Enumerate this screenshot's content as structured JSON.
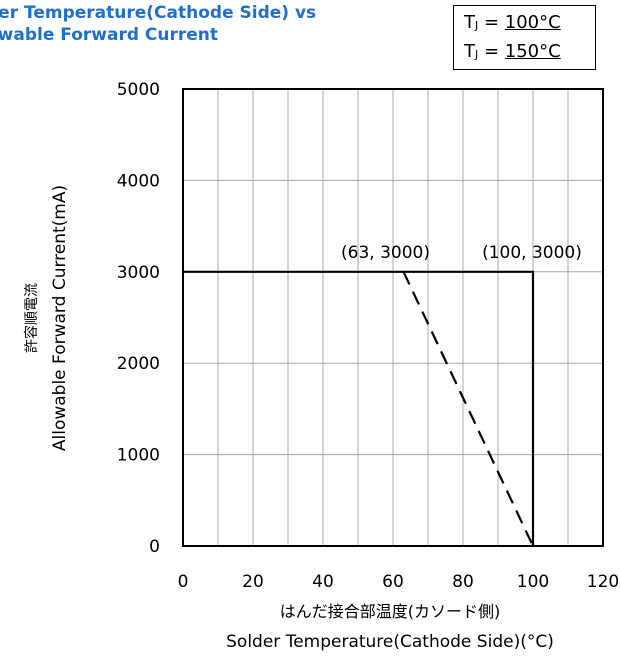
{
  "title": {
    "line1": "der Temperature(Cathode Side) vs",
    "line2": "owable Forward Current"
  },
  "legend": [
    {
      "prefix": "T",
      "sub": "J",
      "eq": " = ",
      "value": "100°C"
    },
    {
      "prefix": "T",
      "sub": "J",
      "eq": " = ",
      "value": "150°C"
    }
  ],
  "chart_data": {
    "type": "line",
    "xlabel_jp": "はんだ接合部温度(カソード側)",
    "xlabel": "Solder Temperature(Cathode Side)(°C)",
    "ylabel_jp": "許容順電流",
    "ylabel": "Allowable Forward Current(mA)",
    "xlim": [
      0,
      120
    ],
    "ylim": [
      0,
      5000
    ],
    "xticks": [
      0,
      20,
      40,
      60,
      80,
      100,
      120
    ],
    "yticks": [
      0,
      1000,
      2000,
      3000,
      4000,
      5000
    ],
    "xtick_labels": [
      "0",
      "20",
      "40",
      "60",
      "80",
      "100",
      "120"
    ],
    "ytick_labels": [
      "0",
      "1000",
      "2000",
      "3000",
      "4000",
      "5000"
    ],
    "grid": true,
    "minor_x_step": 10,
    "series": [
      {
        "style": "solid",
        "x": [
          0,
          100,
          100
        ],
        "y": [
          3000,
          3000,
          0
        ]
      },
      {
        "style": "dashed",
        "x": [
          63,
          100
        ],
        "y": [
          3000,
          0
        ]
      }
    ],
    "annotations": [
      {
        "text": "(63, 3000)",
        "x": 63,
        "y": 3000
      },
      {
        "text": "(100, 3000)",
        "x": 100,
        "y": 3000
      }
    ]
  }
}
